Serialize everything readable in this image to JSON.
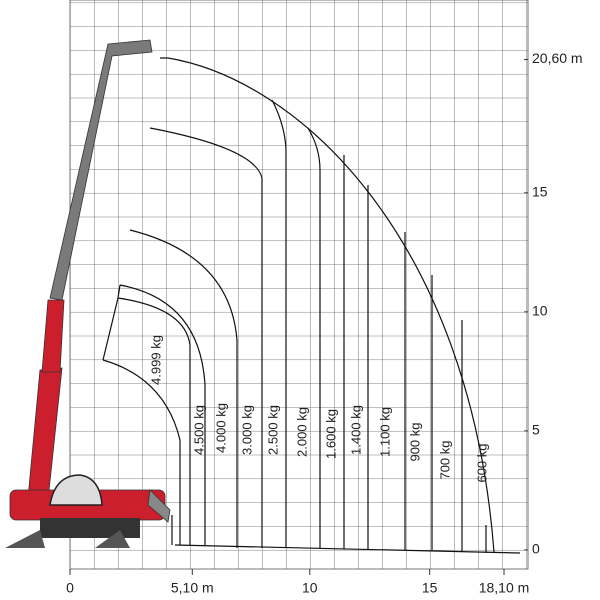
{
  "chart_data": {
    "type": "load-chart",
    "xlim": [
      0,
      19.1
    ],
    "ylim": [
      -0.8,
      23.1
    ],
    "xticks": [
      0,
      {
        "value": 5.1,
        "label": "5,10 m"
      },
      10,
      15,
      {
        "value": 18.1,
        "label": "18,10 m"
      }
    ],
    "yticks": [
      0,
      5,
      10,
      15,
      {
        "value": 20.6,
        "label": "20,60 m"
      }
    ],
    "grid": true,
    "zones": [
      "4.999 kg",
      "4.500 kg",
      "4.000 kg",
      "3.000 kg",
      "2.500 kg",
      "2.000 kg",
      "1.600 kg",
      "1.400 kg",
      "1.100 kg",
      "900 kg",
      "700 kg",
      "600 kg"
    ]
  }
}
